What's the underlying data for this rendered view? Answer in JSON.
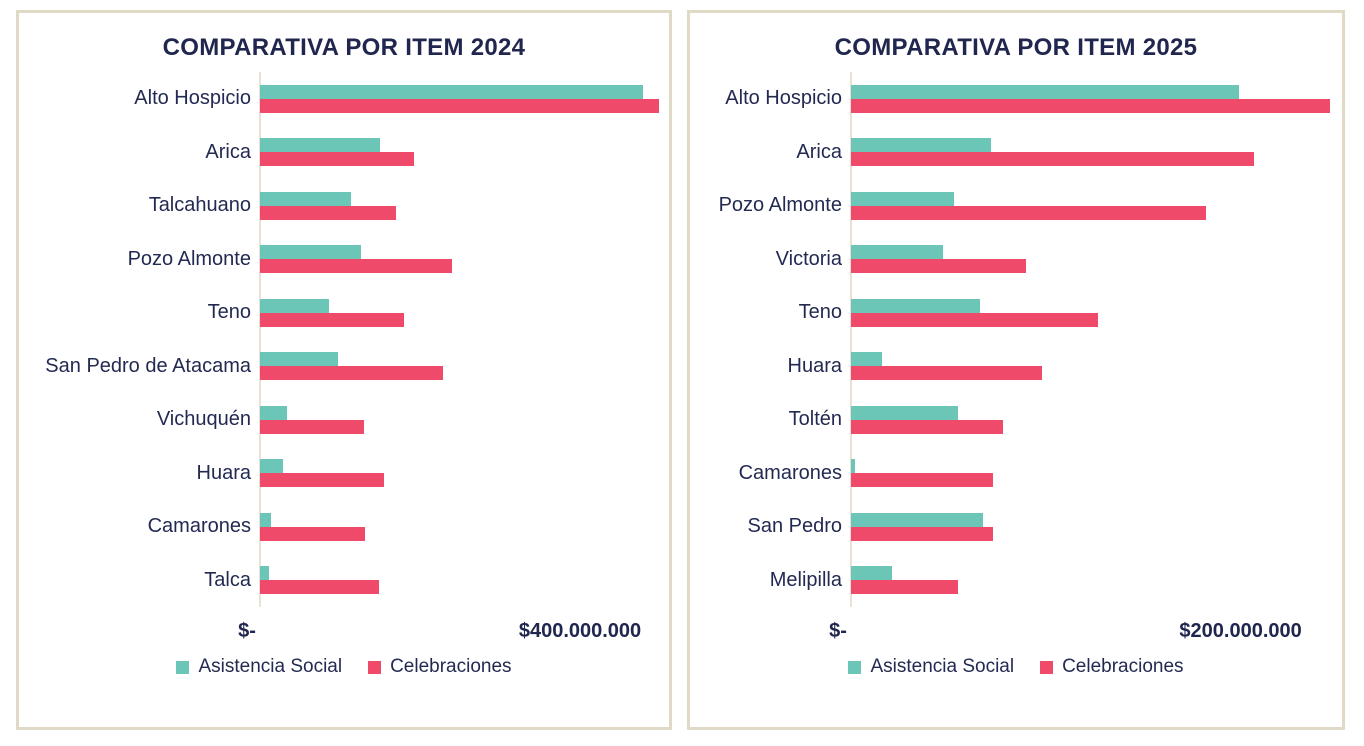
{
  "colors": {
    "background": "#FFFFFF",
    "card_border": "#E0D9C5",
    "axis_line": "#E9E2D2",
    "text_navy": "#232A52",
    "series_asistencia": "#6BC6B8",
    "series_celebraciones": "#F04A6B"
  },
  "chart_data": [
    {
      "type": "bar",
      "orientation": "horizontal",
      "title": "COMPARATIVA POR ITEM 2024",
      "categories": [
        "Alto Hospicio",
        "Arica",
        "Talcahuano",
        "Pozo Almonte",
        "Teno",
        "San Pedro de Atacama",
        "Vichuquén",
        "Huara",
        "Camarones",
        "Talca"
      ],
      "series": [
        {
          "name": "Asistencia Social",
          "color": "#6BC6B8",
          "values": [
            479000000,
            150000000,
            114000000,
            126000000,
            86000000,
            98000000,
            34000000,
            29000000,
            14000000,
            11000000
          ]
        },
        {
          "name": "Celebraciones",
          "color": "#F04A6B",
          "values": [
            499000000,
            193000000,
            170000000,
            240000000,
            180000000,
            229000000,
            130000000,
            155000000,
            131000000,
            149000000
          ]
        }
      ],
      "x_axis": {
        "min": 0,
        "max": 500000000,
        "tick_values": [
          0,
          400000000
        ],
        "tick_labels": [
          "$-",
          "$400.000.000"
        ]
      },
      "grid": "off",
      "legend_position": "bottom"
    },
    {
      "type": "bar",
      "orientation": "horizontal",
      "title": "COMPARATIVA POR ITEM 2025",
      "categories": [
        "Alto Hospicio",
        "Arica",
        "Pozo Almonte",
        "Victoria",
        "Teno",
        "Huara",
        "Toltén",
        "Camarones",
        "San Pedro",
        "Melipilla"
      ],
      "series": [
        {
          "name": "Asistencia Social",
          "color": "#6BC6B8",
          "values": [
            199000000,
            72000000,
            53000000,
            47000000,
            66000000,
            16000000,
            55000000,
            2000000,
            68000000,
            21000000
          ]
        },
        {
          "name": "Celebraciones",
          "color": "#F04A6B",
          "values": [
            246000000,
            207000000,
            182000000,
            90000000,
            127000000,
            98000000,
            78000000,
            73000000,
            73000000,
            55000000
          ]
        }
      ],
      "x_axis": {
        "min": 0,
        "max": 250000000,
        "tick_values": [
          0,
          200000000
        ],
        "tick_labels": [
          "$-",
          "$200.000.000"
        ]
      },
      "grid": "off",
      "legend_position": "bottom"
    }
  ]
}
